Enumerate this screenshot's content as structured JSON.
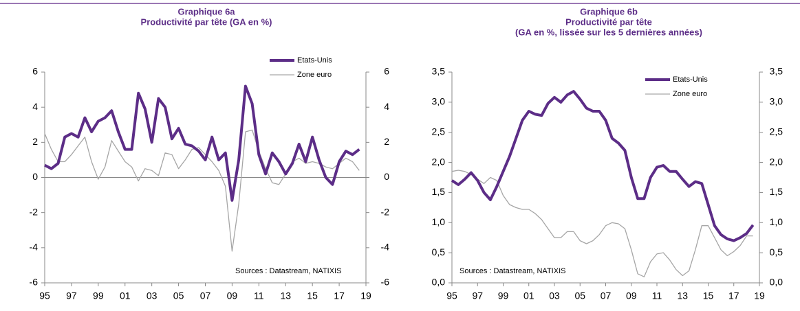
{
  "chart_data": [
    {
      "type": "line",
      "title": "Graphique 6a",
      "subtitle": [
        "Productivité par tête (GA en %)"
      ],
      "annotation": "Sources : Datastream, NATIXIS",
      "x": [
        1995,
        1995.5,
        1996,
        1996.5,
        1997,
        1997.5,
        1998,
        1998.5,
        1999,
        1999.5,
        2000,
        2000.5,
        2001,
        2001.5,
        2002,
        2002.5,
        2003,
        2003.5,
        2004,
        2004.5,
        2005,
        2005.5,
        2006,
        2006.5,
        2007,
        2007.5,
        2008,
        2008.5,
        2009,
        2009.5,
        2010,
        2010.5,
        2011,
        2011.5,
        2012,
        2012.5,
        2013,
        2013.5,
        2014,
        2014.5,
        2015,
        2015.5,
        2016,
        2016.5,
        2017,
        2017.5,
        2018,
        2018.5
      ],
      "series": [
        {
          "name": "Etats-Unis",
          "color": "#5c2d87",
          "values": [
            0.7,
            0.5,
            0.8,
            2.3,
            2.5,
            2.3,
            3.4,
            2.6,
            3.2,
            3.4,
            3.8,
            2.6,
            1.6,
            1.6,
            4.8,
            3.9,
            2.0,
            4.5,
            4.0,
            2.2,
            2.8,
            1.9,
            1.8,
            1.5,
            1.0,
            2.3,
            1.0,
            1.4,
            -1.3,
            1.0,
            5.2,
            4.2,
            1.3,
            0.2,
            1.4,
            0.9,
            0.2,
            0.8,
            1.9,
            0.9,
            2.3,
            1.0,
            0.0,
            -0.4,
            0.9,
            1.5,
            1.3,
            1.6
          ]
        },
        {
          "name": "Zone euro",
          "color": "#a6a6a6",
          "values": [
            2.5,
            1.6,
            0.9,
            0.9,
            1.3,
            1.8,
            2.3,
            0.9,
            -0.1,
            0.6,
            2.1,
            1.5,
            0.9,
            0.6,
            -0.2,
            0.5,
            0.4,
            0.1,
            1.4,
            1.3,
            0.5,
            1.0,
            1.6,
            1.7,
            1.3,
            0.9,
            0.4,
            -0.5,
            -4.2,
            -1.5,
            2.6,
            2.7,
            1.5,
            0.5,
            -0.3,
            -0.4,
            0.2,
            0.9,
            1.1,
            0.8,
            0.9,
            0.8,
            0.6,
            0.5,
            0.8,
            1.1,
            0.9,
            0.4
          ]
        }
      ],
      "xlim": [
        1995,
        2019
      ],
      "xticks": [
        {
          "value": 1995,
          "label": "95"
        },
        {
          "value": 1997,
          "label": "97"
        },
        {
          "value": 1999,
          "label": "99"
        },
        {
          "value": 2001,
          "label": "01"
        },
        {
          "value": 2003,
          "label": "03"
        },
        {
          "value": 2005,
          "label": "05"
        },
        {
          "value": 2007,
          "label": "07"
        },
        {
          "value": 2009,
          "label": "09"
        },
        {
          "value": 2011,
          "label": "11"
        },
        {
          "value": 2013,
          "label": "13"
        },
        {
          "value": 2015,
          "label": "15"
        },
        {
          "value": 2017,
          "label": "17"
        },
        {
          "value": 2019,
          "label": "19"
        }
      ],
      "ylim": [
        -6,
        6
      ],
      "yticks": [
        -6,
        -4,
        -2,
        0,
        2,
        4,
        6
      ],
      "y2lim": [
        -6,
        6
      ],
      "y2ticks": [
        -6,
        -4,
        -2,
        0,
        2,
        4,
        6
      ],
      "legend": "upper right"
    },
    {
      "type": "line",
      "title": "Graphique 6b",
      "subtitle": [
        "Productivité par tête",
        "(GA en %, lissée sur les 5 dernières années)"
      ],
      "annotation": "Sources : Datastream, NATIXIS",
      "x": [
        1995,
        1995.5,
        1996,
        1996.5,
        1997,
        1997.5,
        1998,
        1998.5,
        1999,
        1999.5,
        2000,
        2000.5,
        2001,
        2001.5,
        2002,
        2002.5,
        2003,
        2003.5,
        2004,
        2004.5,
        2005,
        2005.5,
        2006,
        2006.5,
        2007,
        2007.5,
        2008,
        2008.5,
        2009,
        2009.5,
        2010,
        2010.5,
        2011,
        2011.5,
        2012,
        2012.5,
        2013,
        2013.5,
        2014,
        2014.5,
        2015,
        2015.5,
        2016,
        2016.5,
        2017,
        2017.5,
        2018,
        2018.5
      ],
      "series": [
        {
          "name": "Etats-Unis",
          "color": "#5c2d87",
          "values": [
            1.7,
            1.63,
            1.72,
            1.83,
            1.7,
            1.5,
            1.38,
            1.6,
            1.85,
            2.1,
            2.4,
            2.7,
            2.85,
            2.8,
            2.78,
            2.98,
            3.08,
            3.0,
            3.12,
            3.18,
            3.05,
            2.9,
            2.85,
            2.85,
            2.7,
            2.4,
            2.32,
            2.2,
            1.75,
            1.4,
            1.4,
            1.75,
            1.92,
            1.95,
            1.85,
            1.85,
            1.72,
            1.6,
            1.68,
            1.65,
            1.3,
            0.95,
            0.8,
            0.73,
            0.7,
            0.75,
            0.82,
            0.96
          ]
        },
        {
          "name": "Zone euro",
          "color": "#a6a6a6",
          "values": [
            1.85,
            1.87,
            1.85,
            1.8,
            1.72,
            1.65,
            1.75,
            1.7,
            1.45,
            1.3,
            1.25,
            1.22,
            1.22,
            1.15,
            1.05,
            0.9,
            0.75,
            0.75,
            0.85,
            0.85,
            0.7,
            0.65,
            0.7,
            0.8,
            0.95,
            1.0,
            0.98,
            0.9,
            0.55,
            0.15,
            0.1,
            0.35,
            0.48,
            0.5,
            0.38,
            0.22,
            0.12,
            0.2,
            0.55,
            0.95,
            0.95,
            0.75,
            0.55,
            0.45,
            0.52,
            0.62,
            0.78,
            0.78
          ]
        }
      ],
      "xlim": [
        1995,
        2019
      ],
      "xticks": [
        {
          "value": 1995,
          "label": "95"
        },
        {
          "value": 1997,
          "label": "97"
        },
        {
          "value": 1999,
          "label": "99"
        },
        {
          "value": 2001,
          "label": "01"
        },
        {
          "value": 2003,
          "label": "03"
        },
        {
          "value": 2005,
          "label": "05"
        },
        {
          "value": 2007,
          "label": "07"
        },
        {
          "value": 2009,
          "label": "09"
        },
        {
          "value": 2011,
          "label": "11"
        },
        {
          "value": 2013,
          "label": "13"
        },
        {
          "value": 2015,
          "label": "15"
        },
        {
          "value": 2017,
          "label": "17"
        },
        {
          "value": 2019,
          "label": "19"
        }
      ],
      "ylim": [
        0,
        3.5
      ],
      "yticks": [
        {
          "value": 0,
          "label": "0,0"
        },
        {
          "value": 0.5,
          "label": "0,5"
        },
        {
          "value": 1,
          "label": "1,0"
        },
        {
          "value": 1.5,
          "label": "1,5"
        },
        {
          "value": 2,
          "label": "2,0"
        },
        {
          "value": 2.5,
          "label": "2,5"
        },
        {
          "value": 3,
          "label": "3,0"
        },
        {
          "value": 3.5,
          "label": "3,5"
        }
      ],
      "y2lim": [
        0,
        3.5
      ],
      "y2ticks": [
        {
          "value": 0,
          "label": "0,0"
        },
        {
          "value": 0.5,
          "label": "0,5"
        },
        {
          "value": 1,
          "label": "1,0"
        },
        {
          "value": 1.5,
          "label": "1,5"
        },
        {
          "value": 2,
          "label": "2,0"
        },
        {
          "value": 2.5,
          "label": "2,5"
        },
        {
          "value": 3,
          "label": "3,0"
        },
        {
          "value": 3.5,
          "label": "3,5"
        }
      ],
      "legend": "upper right"
    }
  ]
}
